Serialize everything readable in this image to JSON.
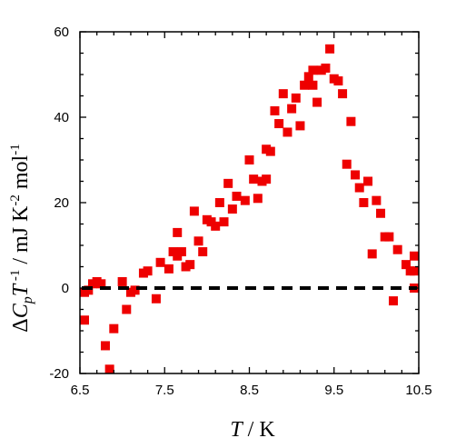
{
  "chart_data": {
    "type": "scatter",
    "xlim": [
      6.5,
      10.5
    ],
    "ylim": [
      -20,
      60
    ],
    "xticks": [
      6.5,
      7.5,
      8.5,
      9.5,
      10.5
    ],
    "xtick_labels": [
      "6.5",
      "7.5",
      "8.5",
      "9.5",
      "10.5"
    ],
    "yticks": [
      -20,
      0,
      20,
      40,
      60
    ],
    "ytick_labels": [
      "-20",
      "0",
      "20",
      "40",
      "60"
    ],
    "xlabel": "T / K",
    "ylabel": "ΔCpT-1 / mJ K-2 mol-1",
    "marker_color": "#ee0000",
    "baseline": {
      "y": 0,
      "style": "dashed",
      "color": "#000000"
    },
    "grid": false,
    "points": [
      [
        6.5,
        -7.5
      ],
      [
        6.55,
        -1
      ],
      [
        6.6,
        -0.5
      ],
      [
        6.65,
        1
      ],
      [
        6.7,
        1.5
      ],
      [
        6.75,
        1
      ],
      [
        6.8,
        -13.5
      ],
      [
        6.85,
        -19
      ],
      [
        6.9,
        -9.5
      ],
      [
        7.0,
        1.5
      ],
      [
        7.05,
        -5
      ],
      [
        7.1,
        -1
      ],
      [
        7.15,
        -0.5
      ],
      [
        7.25,
        3.5
      ],
      [
        7.3,
        4
      ],
      [
        7.4,
        -2.5
      ],
      [
        7.45,
        6
      ],
      [
        7.55,
        4.5
      ],
      [
        7.6,
        8.5
      ],
      [
        7.65,
        7.5
      ],
      [
        7.65,
        13
      ],
      [
        7.7,
        8.5
      ],
      [
        7.75,
        5
      ],
      [
        7.8,
        5.5
      ],
      [
        7.85,
        18
      ],
      [
        7.9,
        11
      ],
      [
        7.95,
        8.5
      ],
      [
        8.0,
        16
      ],
      [
        8.05,
        15.5
      ],
      [
        8.1,
        14.5
      ],
      [
        8.15,
        20
      ],
      [
        8.2,
        15.5
      ],
      [
        8.25,
        24.5
      ],
      [
        8.3,
        18.5
      ],
      [
        8.35,
        21.5
      ],
      [
        8.45,
        20.5
      ],
      [
        8.5,
        30
      ],
      [
        8.55,
        25.5
      ],
      [
        8.6,
        21
      ],
      [
        8.65,
        25
      ],
      [
        8.7,
        25.5
      ],
      [
        8.7,
        32.5
      ],
      [
        8.75,
        32
      ],
      [
        8.8,
        41.5
      ],
      [
        8.85,
        38.5
      ],
      [
        8.9,
        45.5
      ],
      [
        8.95,
        36.5
      ],
      [
        9.0,
        42
      ],
      [
        9.05,
        44.5
      ],
      [
        9.1,
        38
      ],
      [
        9.15,
        47.5
      ],
      [
        9.2,
        49.5
      ],
      [
        9.25,
        47.5
      ],
      [
        9.25,
        51
      ],
      [
        9.3,
        43.5
      ],
      [
        9.35,
        51
      ],
      [
        9.4,
        51.5
      ],
      [
        9.45,
        56
      ],
      [
        9.5,
        49
      ],
      [
        9.55,
        48.5
      ],
      [
        9.6,
        45.5
      ],
      [
        9.65,
        29
      ],
      [
        9.7,
        39
      ],
      [
        9.75,
        26.5
      ],
      [
        9.8,
        23.5
      ],
      [
        9.85,
        20
      ],
      [
        9.9,
        25
      ],
      [
        9.95,
        8
      ],
      [
        10.0,
        20.5
      ],
      [
        10.05,
        17.5
      ],
      [
        10.1,
        12
      ],
      [
        10.15,
        12
      ],
      [
        10.2,
        -3
      ],
      [
        10.25,
        9
      ],
      [
        10.35,
        5.5
      ],
      [
        10.4,
        4
      ],
      [
        10.45,
        0
      ],
      [
        10.5,
        4
      ],
      [
        10.7,
        7.5
      ]
    ]
  }
}
